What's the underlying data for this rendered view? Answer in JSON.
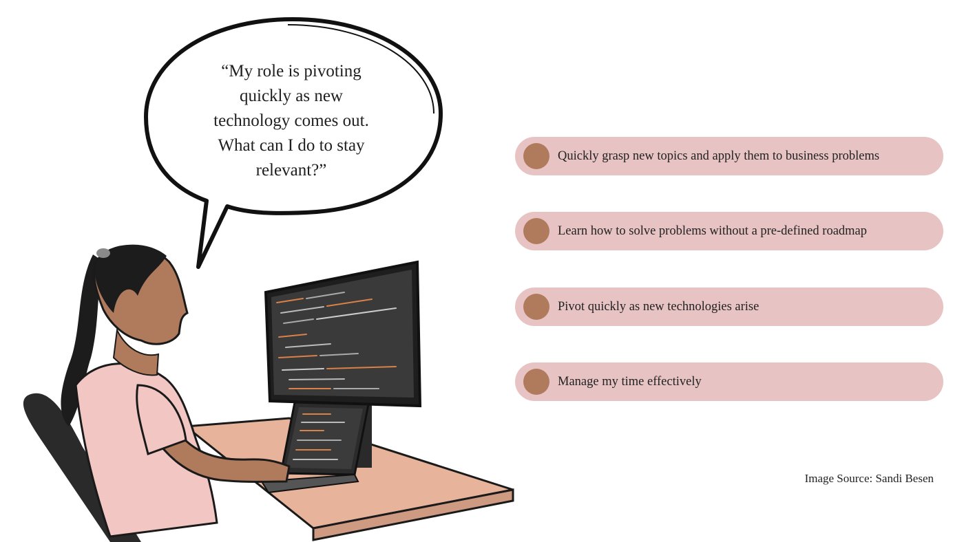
{
  "speech_bubble": {
    "lines": [
      "“My role is pivoting",
      "quickly as new",
      "technology comes out.",
      "What can I do to stay",
      "relevant?”"
    ]
  },
  "items": [
    {
      "label": "Quickly grasp new topics and apply them to business problems"
    },
    {
      "label": "Learn how to solve problems without a pre-defined roadmap"
    },
    {
      "label": "Pivot quickly as new technologies arise"
    },
    {
      "label": "Manage my time effectively"
    }
  ],
  "source": "Image Source: Sandi Besen",
  "colors": {
    "pill": "#e8c3c3",
    "dot": "#b07a5c",
    "skin": "#b07a5c",
    "shirt": "#f2c7c3",
    "desk": "#e7b49b",
    "screen": "#2f2f2f"
  }
}
